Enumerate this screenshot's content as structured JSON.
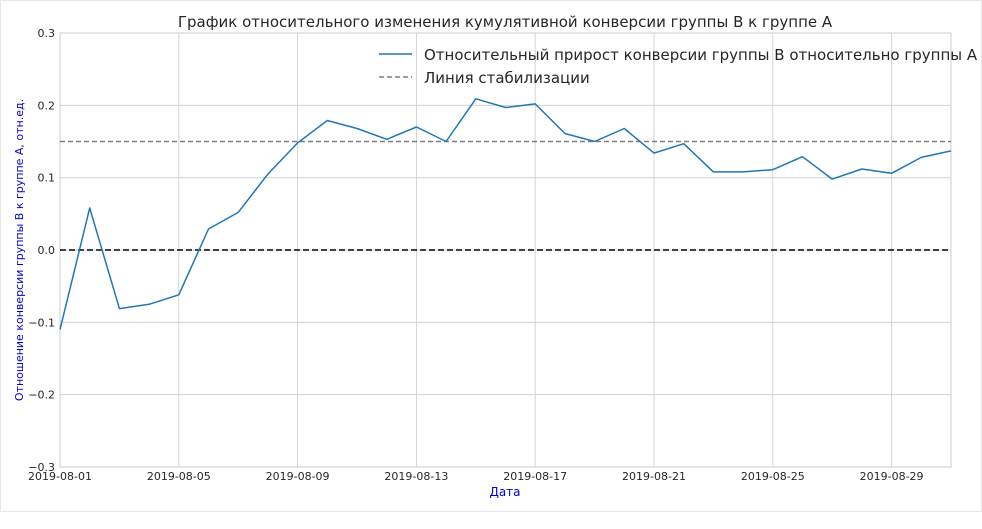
{
  "chart_data": {
    "type": "line",
    "title": "График относительного изменения кумулятивной конверсии группы B к группе A",
    "xlabel": "Дата",
    "ylabel": "Отношение конверсии группы B к группе A, отн.ед.",
    "ylim": [
      -0.3,
      0.3
    ],
    "xlim": [
      "2019-08-01",
      "2019-08-31"
    ],
    "x_ticks": [
      "2019-08-01",
      "2019-08-05",
      "2019-08-09",
      "2019-08-13",
      "2019-08-17",
      "2019-08-21",
      "2019-08-25",
      "2019-08-29"
    ],
    "y_ticks": [
      -0.3,
      -0.2,
      -0.1,
      0.0,
      0.1,
      0.2,
      0.3
    ],
    "y_tick_labels": [
      "−0.3",
      "−0.2",
      "−0.1",
      "0.0",
      "0.1",
      "0.2",
      "0.3"
    ],
    "grid": true,
    "legend_position": "top-right",
    "x": [
      "2019-08-01",
      "2019-08-02",
      "2019-08-03",
      "2019-08-04",
      "2019-08-05",
      "2019-08-06",
      "2019-08-07",
      "2019-08-08",
      "2019-08-09",
      "2019-08-10",
      "2019-08-11",
      "2019-08-12",
      "2019-08-13",
      "2019-08-14",
      "2019-08-15",
      "2019-08-16",
      "2019-08-17",
      "2019-08-18",
      "2019-08-19",
      "2019-08-20",
      "2019-08-21",
      "2019-08-22",
      "2019-08-23",
      "2019-08-24",
      "2019-08-25",
      "2019-08-26",
      "2019-08-27",
      "2019-08-28",
      "2019-08-29",
      "2019-08-30",
      "2019-08-31"
    ],
    "series": [
      {
        "name": "Относительный прирост конверсии группы B относительно группы A",
        "color": "#1f77b4",
        "style": "solid",
        "values": [
          -0.11,
          0.058,
          -0.081,
          -0.075,
          -0.062,
          0.029,
          0.052,
          0.105,
          0.148,
          0.179,
          0.168,
          0.153,
          0.17,
          0.15,
          0.209,
          0.197,
          0.202,
          0.161,
          0.15,
          0.168,
          0.134,
          0.147,
          0.108,
          0.108,
          0.111,
          0.129,
          0.098,
          0.112,
          0.106,
          0.128,
          0.137
        ]
      }
    ],
    "reference_lines": [
      {
        "name": "Линия стабилизации",
        "y": 0.15,
        "color": "#7f7f7f",
        "style": "dashed"
      },
      {
        "y": 0.0,
        "color": "#000000",
        "style": "dashed"
      }
    ],
    "colors": {
      "axis_label": "#0000cc",
      "grid": "#cccccc",
      "text": "#262626"
    }
  }
}
